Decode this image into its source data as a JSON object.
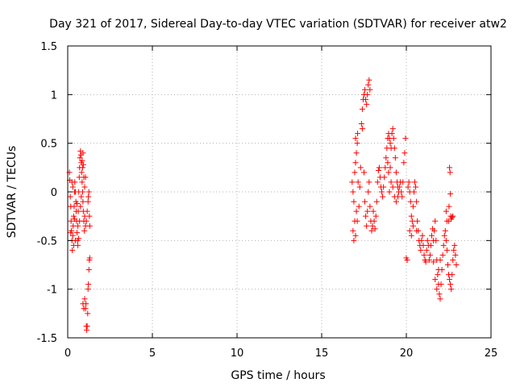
{
  "chart_data": {
    "type": "scatter",
    "title": "Day 321 of 2017, Sidereal Day-to-day VTEC variation (SDTVAR) for receiver atw2",
    "xlabel": "GPS time / hours",
    "ylabel": "SDTVAR / TECUs",
    "xlim": [
      0,
      25
    ],
    "ylim": [
      -1.5,
      1.5
    ],
    "xticks": [
      0,
      5,
      10,
      15,
      20,
      25
    ],
    "xtick_labels": [
      "0",
      "5",
      "10",
      "15",
      "20",
      "25"
    ],
    "yticks": [
      -1.5,
      -1,
      -0.5,
      0,
      0.5,
      1,
      1.5
    ],
    "ytick_labels": [
      "-1.5",
      "-1",
      "-0.5",
      "0",
      "0.5",
      "1",
      "1.5"
    ],
    "grid": true,
    "marker": "+",
    "color": "#ff0000",
    "series": [
      {
        "name": "SDTVAR",
        "points": [
          [
            0.1,
            0.2
          ],
          [
            0.12,
            0.12
          ],
          [
            0.15,
            -0.05
          ],
          [
            0.18,
            -0.15
          ],
          [
            0.2,
            -0.3
          ],
          [
            0.22,
            -0.4
          ],
          [
            0.25,
            -0.5
          ],
          [
            0.27,
            -0.6
          ],
          [
            0.3,
            -0.45
          ],
          [
            0.32,
            -0.35
          ],
          [
            0.35,
            -0.25
          ],
          [
            0.38,
            -0.15
          ],
          [
            0.4,
            0.0
          ],
          [
            0.42,
            0.1
          ],
          [
            0.45,
            0.0
          ],
          [
            0.48,
            -0.1
          ],
          [
            0.5,
            -0.2
          ],
          [
            0.52,
            -0.3
          ],
          [
            0.55,
            -0.42
          ],
          [
            0.58,
            -0.5
          ],
          [
            0.6,
            -0.35
          ],
          [
            0.62,
            -0.2
          ],
          [
            0.65,
            0.0
          ],
          [
            0.68,
            0.15
          ],
          [
            0.7,
            0.25
          ],
          [
            0.72,
            0.35
          ],
          [
            0.75,
            0.42
          ],
          [
            0.78,
            0.38
          ],
          [
            0.8,
            0.3
          ],
          [
            0.82,
            0.2
          ],
          [
            0.85,
            0.1
          ],
          [
            0.88,
            0.0
          ],
          [
            0.9,
            -0.1
          ],
          [
            0.92,
            -0.2
          ],
          [
            0.95,
            -0.3
          ],
          [
            0.98,
            -0.4
          ],
          [
            0.6,
            -0.55
          ],
          [
            0.65,
            -0.48
          ],
          [
            0.7,
            -0.3
          ],
          [
            0.75,
            -0.15
          ],
          [
            0.8,
            -0.05
          ],
          [
            0.85,
            0.32
          ],
          [
            0.88,
            0.25
          ],
          [
            0.9,
            0.4
          ],
          [
            0.92,
            0.28
          ],
          [
            0.95,
            0.15
          ],
          [
            1.0,
            -0.25
          ],
          [
            1.05,
            -0.35
          ],
          [
            1.1,
            -0.3
          ],
          [
            1.15,
            -0.2
          ],
          [
            1.2,
            -0.1
          ],
          [
            1.22,
            -0.05
          ],
          [
            1.25,
            0.0
          ],
          [
            1.28,
            -0.25
          ],
          [
            1.3,
            -0.35
          ],
          [
            1.0,
            -1.1
          ],
          [
            1.05,
            -1.2
          ],
          [
            1.08,
            -1.15
          ],
          [
            1.1,
            -1.38
          ],
          [
            1.12,
            -1.42
          ],
          [
            1.15,
            -1.38
          ],
          [
            1.18,
            -1.25
          ],
          [
            1.2,
            -1.0
          ],
          [
            1.22,
            -0.95
          ],
          [
            1.25,
            -0.8
          ],
          [
            1.28,
            -0.7
          ],
          [
            1.3,
            -0.68
          ],
          [
            0.9,
            -1.15
          ],
          [
            0.95,
            -1.2
          ],
          [
            0.18,
            -0.42
          ],
          [
            0.35,
            -0.55
          ],
          [
            0.45,
            -0.5
          ],
          [
            1.0,
            0.05
          ],
          [
            1.05,
            0.15
          ],
          [
            0.25,
            0.1
          ],
          [
            0.3,
            0.05
          ],
          [
            0.55,
            -0.12
          ],
          [
            0.4,
            -0.28
          ],
          [
            16.8,
            0.1
          ],
          [
            16.85,
            0.0
          ],
          [
            16.9,
            -0.1
          ],
          [
            16.95,
            -0.3
          ],
          [
            17.0,
            -0.45
          ],
          [
            16.9,
            -0.5
          ],
          [
            16.85,
            -0.4
          ],
          [
            16.95,
            0.2
          ],
          [
            17.0,
            0.3
          ],
          [
            17.05,
            0.4
          ],
          [
            17.1,
            0.5
          ],
          [
            17.12,
            0.6
          ],
          [
            17.0,
            0.55
          ],
          [
            17.05,
            -0.2
          ],
          [
            17.1,
            -0.3
          ],
          [
            17.15,
            0.1
          ],
          [
            17.2,
            -0.15
          ],
          [
            17.25,
            0.05
          ],
          [
            17.3,
            0.25
          ],
          [
            17.35,
            0.7
          ],
          [
            17.4,
            0.85
          ],
          [
            17.45,
            0.95
          ],
          [
            17.5,
            1.0
          ],
          [
            17.55,
            1.05
          ],
          [
            17.6,
            0.95
          ],
          [
            17.65,
            0.9
          ],
          [
            17.7,
            1.0
          ],
          [
            17.75,
            1.1
          ],
          [
            17.8,
            1.15
          ],
          [
            17.85,
            1.05
          ],
          [
            17.4,
            0.65
          ],
          [
            17.5,
            0.2
          ],
          [
            17.55,
            -0.1
          ],
          [
            17.6,
            -0.25
          ],
          [
            17.65,
            -0.35
          ],
          [
            17.7,
            -0.2
          ],
          [
            17.75,
            0.0
          ],
          [
            17.8,
            0.1
          ],
          [
            17.85,
            -0.15
          ],
          [
            17.9,
            -0.3
          ],
          [
            17.95,
            -0.4
          ],
          [
            18.0,
            -0.35
          ],
          [
            18.05,
            -0.2
          ],
          [
            18.1,
            -0.3
          ],
          [
            18.15,
            -0.38
          ],
          [
            18.2,
            -0.25
          ],
          [
            18.25,
            -0.1
          ],
          [
            18.3,
            0.1
          ],
          [
            18.35,
            0.22
          ],
          [
            18.4,
            0.25
          ],
          [
            18.45,
            0.15
          ],
          [
            18.5,
            0.05
          ],
          [
            18.55,
            0.0
          ],
          [
            18.6,
            -0.05
          ],
          [
            18.65,
            0.05
          ],
          [
            18.7,
            0.15
          ],
          [
            18.75,
            0.25
          ],
          [
            18.8,
            0.35
          ],
          [
            18.85,
            0.45
          ],
          [
            18.9,
            0.55
          ],
          [
            18.95,
            0.6
          ],
          [
            19.0,
            0.55
          ],
          [
            19.05,
            0.5
          ],
          [
            19.1,
            0.45
          ],
          [
            19.15,
            0.6
          ],
          [
            19.2,
            0.65
          ],
          [
            19.25,
            0.55
          ],
          [
            19.3,
            0.45
          ],
          [
            19.35,
            0.35
          ],
          [
            19.4,
            0.2
          ],
          [
            19.45,
            0.1
          ],
          [
            19.5,
            0.05
          ],
          [
            19.55,
            0.0
          ],
          [
            19.6,
            0.05
          ],
          [
            19.65,
            0.1
          ],
          [
            19.7,
            0.0
          ],
          [
            19.75,
            -0.05
          ],
          [
            19.8,
            0.1
          ],
          [
            19.85,
            0.3
          ],
          [
            19.9,
            0.4
          ],
          [
            19.95,
            0.55
          ],
          [
            19.0,
            0.0
          ],
          [
            19.1,
            0.1
          ],
          [
            19.2,
            0.05
          ],
          [
            19.3,
            -0.05
          ],
          [
            19.4,
            -0.1
          ],
          [
            19.5,
            -0.05
          ],
          [
            18.9,
            0.3
          ],
          [
            18.95,
            0.2
          ],
          [
            19.05,
            0.25
          ],
          [
            20.0,
            -0.68
          ],
          [
            20.05,
            -0.7
          ],
          [
            20.1,
            0.05
          ],
          [
            20.15,
            0.1
          ],
          [
            20.2,
            0.0
          ],
          [
            20.25,
            -0.1
          ],
          [
            20.3,
            -0.25
          ],
          [
            20.35,
            -0.3
          ],
          [
            20.4,
            -0.15
          ],
          [
            20.45,
            0.0
          ],
          [
            20.5,
            0.1
          ],
          [
            20.55,
            0.05
          ],
          [
            20.6,
            -0.1
          ],
          [
            20.65,
            -0.3
          ],
          [
            20.7,
            -0.4
          ],
          [
            20.75,
            -0.5
          ],
          [
            20.8,
            -0.55
          ],
          [
            20.85,
            -0.6
          ],
          [
            20.9,
            -0.5
          ],
          [
            20.95,
            -0.45
          ],
          [
            21.0,
            -0.55
          ],
          [
            21.05,
            -0.65
          ],
          [
            21.1,
            -0.7
          ],
          [
            21.15,
            -0.72
          ],
          [
            21.2,
            -0.6
          ],
          [
            21.25,
            -0.5
          ],
          [
            21.3,
            -0.55
          ],
          [
            21.35,
            -0.7
          ],
          [
            21.4,
            -0.65
          ],
          [
            21.45,
            -0.55
          ],
          [
            21.5,
            -0.45
          ],
          [
            21.55,
            -0.38
          ],
          [
            21.6,
            -0.5
          ],
          [
            21.65,
            -0.4
          ],
          [
            21.7,
            -0.3
          ],
          [
            21.75,
            -0.5
          ],
          [
            21.8,
            -0.7
          ],
          [
            21.85,
            -0.85
          ],
          [
            21.9,
            -0.95
          ],
          [
            21.95,
            -1.05
          ],
          [
            22.0,
            -1.1
          ],
          [
            22.05,
            -0.95
          ],
          [
            22.1,
            -0.8
          ],
          [
            22.15,
            -0.65
          ],
          [
            22.2,
            -0.55
          ],
          [
            22.25,
            -0.45
          ],
          [
            22.3,
            -0.4
          ],
          [
            22.35,
            -0.5
          ],
          [
            22.4,
            -0.6
          ],
          [
            22.45,
            -0.75
          ],
          [
            22.5,
            -0.85
          ],
          [
            22.55,
            -0.9
          ],
          [
            22.6,
            -0.95
          ],
          [
            22.65,
            -1.0
          ],
          [
            22.7,
            -0.85
          ],
          [
            22.75,
            -0.7
          ],
          [
            22.8,
            -0.6
          ],
          [
            22.85,
            -0.55
          ],
          [
            22.9,
            -0.65
          ],
          [
            22.95,
            -0.75
          ],
          [
            22.55,
            0.25
          ],
          [
            22.58,
            0.2
          ],
          [
            22.6,
            -0.02
          ],
          [
            22.62,
            -0.25
          ],
          [
            22.65,
            -0.28
          ],
          [
            22.7,
            -0.26
          ],
          [
            22.75,
            -0.25
          ],
          [
            22.5,
            -0.3
          ],
          [
            22.52,
            -0.15
          ],
          [
            22.35,
            -0.2
          ],
          [
            22.4,
            -0.3
          ],
          [
            21.6,
            -0.72
          ],
          [
            21.7,
            -0.9
          ],
          [
            21.8,
            -1.0
          ],
          [
            21.9,
            -0.8
          ],
          [
            22.0,
            -0.7
          ],
          [
            20.2,
            -0.4
          ],
          [
            20.3,
            -0.45
          ],
          [
            20.4,
            -0.35
          ],
          [
            20.6,
            -0.4
          ]
        ]
      }
    ]
  }
}
